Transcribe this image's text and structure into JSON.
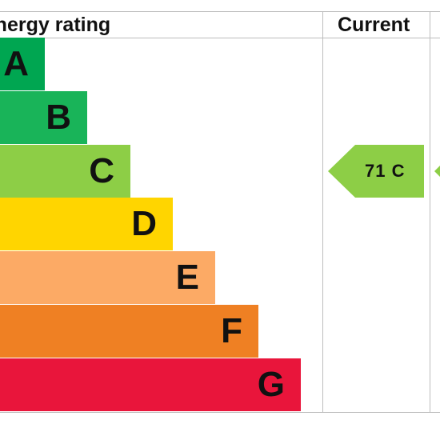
{
  "chart_data": {
    "type": "table",
    "header": {
      "rating_title": "Energy rating",
      "current_title": "Current"
    },
    "bands": [
      {
        "letter": "A",
        "color": "#00a651"
      },
      {
        "letter": "B",
        "color": "#19b459"
      },
      {
        "letter": "C",
        "color": "#8dce46"
      },
      {
        "letter": "D",
        "color": "#ffd500"
      },
      {
        "letter": "E",
        "color": "#fcaa65"
      },
      {
        "letter": "F",
        "color": "#ef8023"
      },
      {
        "letter": "G",
        "color": "#e9153b"
      }
    ],
    "current": {
      "score": 71,
      "band": "C",
      "label": "71  C",
      "color": "#8dce46"
    }
  }
}
